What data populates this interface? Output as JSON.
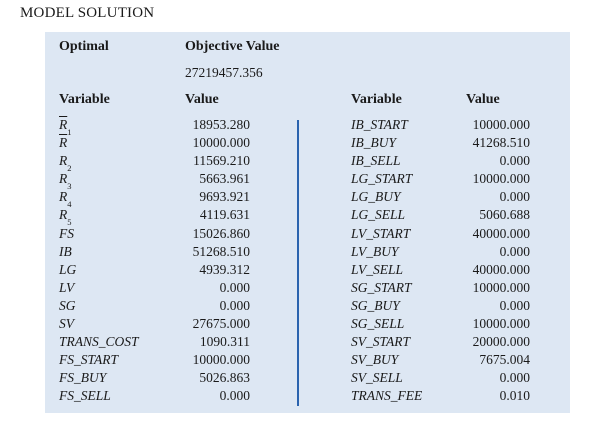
{
  "title": "MODEL SOLUTION",
  "objective": {
    "optimal_label": "Optimal",
    "header": "Objective Value",
    "value": "27219457.356"
  },
  "headers": {
    "variable": "Variable",
    "value": "Value"
  },
  "left_rows": [
    {
      "var": "R",
      "sub": "1",
      "bar": true,
      "value": "18953.280"
    },
    {
      "var": "R",
      "sub": "",
      "bar": true,
      "value": "10000.000"
    },
    {
      "var": "R",
      "sub": "2",
      "bar": false,
      "value": "11569.210"
    },
    {
      "var": "R",
      "sub": "3",
      "bar": false,
      "value": "5663.961"
    },
    {
      "var": "R",
      "sub": "4",
      "bar": false,
      "value": "9693.921"
    },
    {
      "var": "R",
      "sub": "5",
      "bar": false,
      "value": "4119.631"
    },
    {
      "var": "FS",
      "value": "15026.860"
    },
    {
      "var": "IB",
      "value": "51268.510"
    },
    {
      "var": "LG",
      "value": "4939.312"
    },
    {
      "var": "LV",
      "value": "0.000"
    },
    {
      "var": "SG",
      "value": "0.000"
    },
    {
      "var": "SV",
      "value": "27675.000"
    },
    {
      "var": "TRANS_COST",
      "value": "1090.311"
    },
    {
      "var": "FS_START",
      "value": "10000.000"
    },
    {
      "var": "FS_BUY",
      "value": "5026.863"
    },
    {
      "var": "FS_SELL",
      "value": "0.000"
    }
  ],
  "right_rows": [
    {
      "var": "IB_START",
      "value": "10000.000"
    },
    {
      "var": "IB_BUY",
      "value": "41268.510"
    },
    {
      "var": "IB_SELL",
      "value": "0.000"
    },
    {
      "var": "LG_START",
      "value": "10000.000"
    },
    {
      "var": "LG_BUY",
      "value": "0.000"
    },
    {
      "var": "LG_SELL",
      "value": "5060.688"
    },
    {
      "var": "LV_START",
      "value": "40000.000"
    },
    {
      "var": "LV_BUY",
      "value": "0.000"
    },
    {
      "var": "LV_SELL",
      "value": "40000.000"
    },
    {
      "var": "SG_START",
      "value": "10000.000"
    },
    {
      "var": "SG_BUY",
      "value": "0.000"
    },
    {
      "var": "SG_SELL",
      "value": "10000.000"
    },
    {
      "var": "SV_START",
      "value": "20000.000"
    },
    {
      "var": "SV_BUY",
      "value": "7675.004"
    },
    {
      "var": "SV_SELL",
      "value": "0.000"
    },
    {
      "var": "TRANS_FEE",
      "value": "0.010"
    }
  ]
}
